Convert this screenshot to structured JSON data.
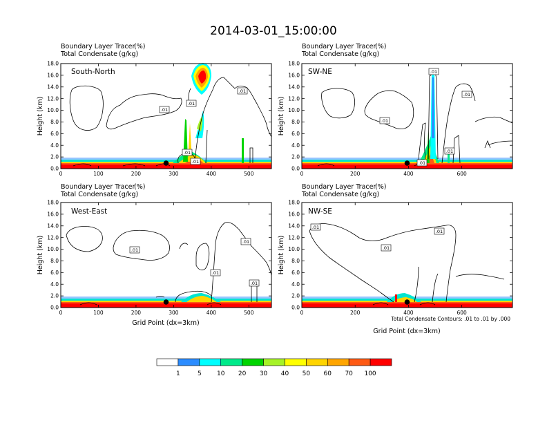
{
  "chart_data": {
    "type": "heatmap",
    "title": "2014-03-01_15:00:00",
    "colorbar": {
      "colors": [
        "#ffffff",
        "#2b8cff",
        "#00ffff",
        "#00ea8a",
        "#00d400",
        "#a6f227",
        "#ffff00",
        "#ffd400",
        "#ffa500",
        "#ff5a14",
        "#ff0000"
      ],
      "tick_labels": [
        "1",
        "5",
        "10",
        "20",
        "30",
        "40",
        "50",
        "60",
        "70",
        "100"
      ]
    },
    "contour_note": "Total Condensate Contours: .01 to .01 by .000",
    "panels": [
      {
        "name": "South-North",
        "header_line1": "Boundary Layer Tracer",
        "header_line1_units": "(%)",
        "header_line2": "Total Condensate",
        "header_line2_units": "(g/kg)",
        "xlim": [
          0,
          560
        ],
        "ylim": [
          0,
          18
        ],
        "xticks": [
          "0",
          "100",
          "200",
          "300",
          "400",
          "500"
        ],
        "yticks": [
          "0.0",
          "2.0",
          "4.0",
          "6.0",
          "8.0",
          "10.0",
          "12.0",
          "14.0",
          "16.0",
          "18.0"
        ],
        "ylabel": "Height (km)",
        "xlabel": "",
        "marker_x": 280,
        "contour_labels": [
          ".01",
          ".01",
          ".01",
          ".01",
          ".01"
        ]
      },
      {
        "name": "SW-NE",
        "header_line1": "Boundary Layer Tracer",
        "header_line1_units": "(%)",
        "header_line2": "Total Condensate",
        "header_line2_units": "(g/kg)",
        "xlim": [
          0,
          790
        ],
        "ylim": [
          0,
          18
        ],
        "xticks": [
          "0",
          "200",
          "400",
          "600"
        ],
        "yticks": [
          "0.0",
          "2.0",
          "4.0",
          "6.0",
          "8.0",
          "10.0",
          "12.0",
          "14.0",
          "16.0",
          "18.0"
        ],
        "ylabel": "Height (km)",
        "xlabel": "",
        "marker_x": 395,
        "contour_labels": [
          ".01",
          ".01",
          ".01",
          ".01",
          ".01"
        ]
      },
      {
        "name": "West-East",
        "header_line1": "Boundary Layer Tracer",
        "header_line1_units": "(%)",
        "header_line2": "Total Condensate",
        "header_line2_units": "(g/kg)",
        "xlim": [
          0,
          560
        ],
        "ylim": [
          0,
          18
        ],
        "xticks": [
          "0",
          "100",
          "200",
          "300",
          "400",
          "500"
        ],
        "yticks": [
          "0.0",
          "2.0",
          "4.0",
          "6.0",
          "8.0",
          "10.0",
          "12.0",
          "14.0",
          "16.0",
          "18.0"
        ],
        "ylabel": "Height (km)",
        "xlabel": "Grid Point (dx=3km)",
        "marker_x": 280,
        "contour_labels": [
          ".01",
          ".01",
          ".01",
          ".01"
        ]
      },
      {
        "name": "NW-SE",
        "header_line1": "Boundary Layer Tracer",
        "header_line1_units": "(%)",
        "header_line2": "Total Condensate",
        "header_line2_units": "(g/kg)",
        "xlim": [
          0,
          790
        ],
        "ylim": [
          0,
          18
        ],
        "xticks": [
          "0",
          "200",
          "400",
          "600"
        ],
        "yticks": [
          "0.0",
          "2.0",
          "4.0",
          "6.0",
          "8.0",
          "10.0",
          "12.0",
          "14.0",
          "16.0",
          "18.0"
        ],
        "ylabel": "Height (km)",
        "xlabel": "Grid Point (dx=3km)",
        "marker_x": 395,
        "contour_labels": [
          ".01",
          ".01",
          ".01"
        ]
      }
    ]
  }
}
